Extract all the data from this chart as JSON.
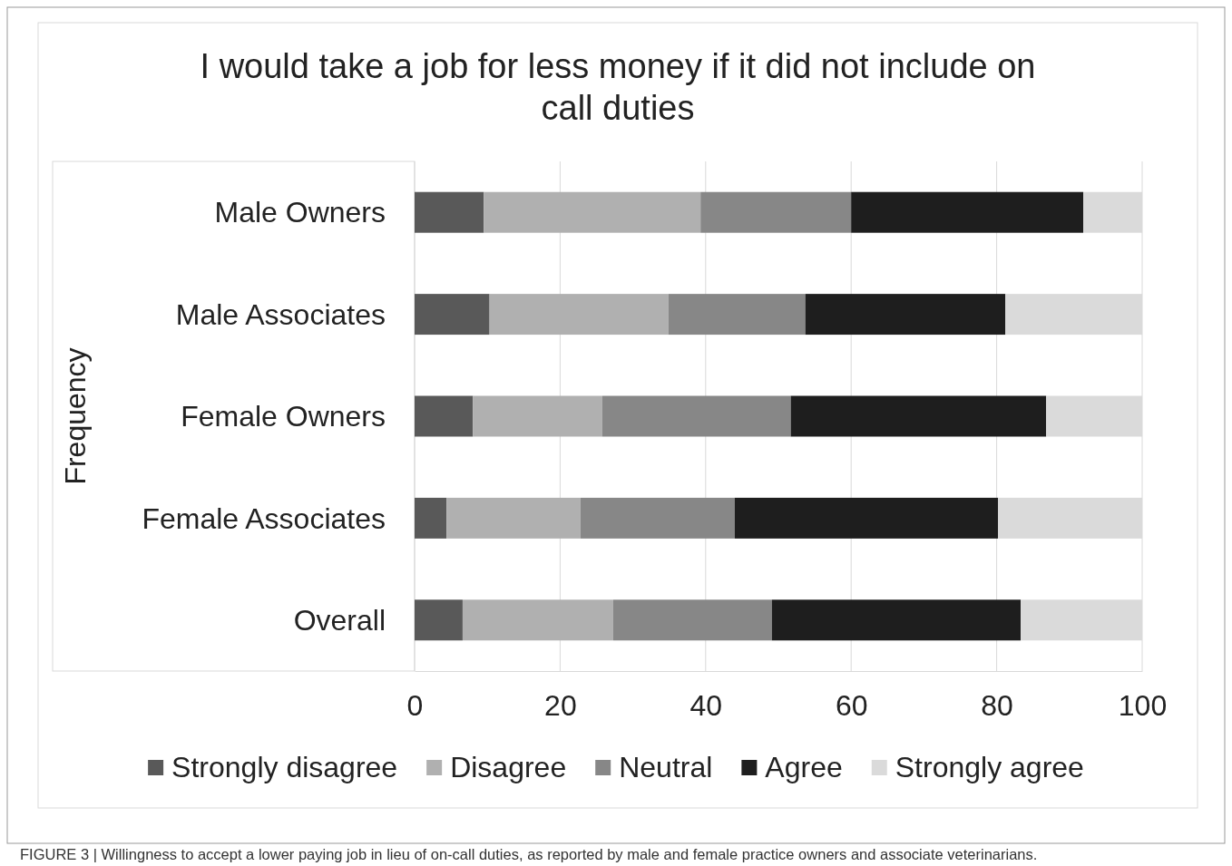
{
  "chart_data": {
    "type": "bar",
    "orientation": "horizontal",
    "stacked": true,
    "title": "I would take a job for less money if it did not include on call duties",
    "ylabel": "Frequency",
    "categories": [
      "Male Owners",
      "Male Associates",
      "Female Owners",
      "Female Associates",
      "Overall"
    ],
    "series": [
      {
        "name": "Strongly disagree",
        "color": "#595959",
        "values": [
          9.5,
          10.3,
          8.0,
          4.4,
          6.6
        ]
      },
      {
        "name": "Disagree",
        "color": "#b0b0b0",
        "values": [
          29.8,
          24.6,
          17.8,
          18.4,
          20.7
        ]
      },
      {
        "name": "Neutral",
        "color": "#878787",
        "values": [
          20.7,
          18.8,
          25.9,
          21.2,
          21.8
        ]
      },
      {
        "name": "Agree",
        "color": "#1e1e1e",
        "values": [
          31.9,
          27.5,
          35.1,
          36.2,
          34.2
        ]
      },
      {
        "name": "Strongly agree",
        "color": "#dadada",
        "values": [
          8.1,
          18.8,
          13.2,
          19.8,
          16.7
        ]
      }
    ],
    "xlim": [
      0,
      100
    ],
    "xticks": [
      0,
      20,
      40,
      60,
      80,
      100
    ],
    "grid": "x",
    "legend": "bottom",
    "annotations": [
      "FIGURE 3 | Willingness to accept a lower paying job in lieu of on-call duties, as reported by male and female practice owners and associate veterinarians."
    ]
  }
}
